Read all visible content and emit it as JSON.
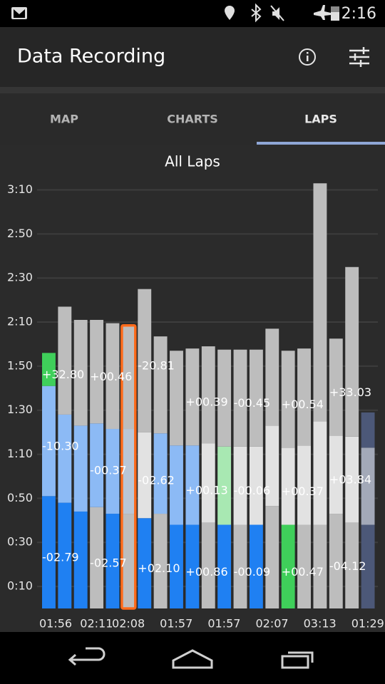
{
  "status_bar": {
    "time": "2:16"
  },
  "app_bar": {
    "title": "Data Recording"
  },
  "tabs": [
    "MAP",
    "CHARTS",
    "LAPS"
  ],
  "selected_tab": 2,
  "chart_data": {
    "type": "bar",
    "stacked": true,
    "title": "All Laps",
    "categories": [
      "01:56",
      null,
      null,
      "02:11",
      null,
      "02:08",
      null,
      null,
      "01:57",
      null,
      null,
      "01:57",
      null,
      null,
      "02:07",
      null,
      null,
      "03:13",
      null,
      null,
      "01:29"
    ],
    "highlight": 5,
    "highlight_color": "#ff6a1a",
    "ylim": [
      0,
      196
    ],
    "yticks": [
      {
        "value": 10,
        "label": "0:10"
      },
      {
        "value": 30,
        "label": "0:30"
      },
      {
        "value": 50,
        "label": "0:50"
      },
      {
        "value": 70,
        "label": "1:10"
      },
      {
        "value": 90,
        "label": "1:30"
      },
      {
        "value": 110,
        "label": "1:50"
      },
      {
        "value": 130,
        "label": "2:10"
      },
      {
        "value": 150,
        "label": "2:30"
      },
      {
        "value": 170,
        "label": "2:50"
      },
      {
        "value": 190,
        "label": "3:10"
      }
    ],
    "grid": true,
    "series": [
      {
        "values": [
          51,
          48,
          44,
          46,
          43,
          43,
          41,
          43,
          38,
          38,
          39,
          38,
          38,
          38,
          46.5,
          38,
          38,
          38,
          43,
          39,
          38
        ],
        "colors": [
          "#1f80f2",
          "#1f80f2",
          "#1f80f2",
          "#bdbdbd",
          "#1f80f2",
          "#bdbdbd",
          "#1f80f2",
          "#bdbdbd",
          "#1f80f2",
          "#1f80f2",
          "#bdbdbd",
          "#1f80f2",
          "#bdbdbd",
          "#1f80f2",
          "#bdbdbd",
          "#3fcf5a",
          "#bdbdbd",
          "#bdbdbd",
          "#bdbdbd",
          "#bdbdbd",
          "#4c5878"
        ],
        "delta_labels": [
          "-02.79",
          null,
          null,
          "-02.57",
          null,
          null,
          "+02.10",
          null,
          null,
          "+00.86",
          null,
          null,
          "-00.09",
          null,
          null,
          "+00.47",
          null,
          null,
          "-04.12",
          null,
          null
        ]
      },
      {
        "values": [
          50,
          40,
          39,
          38,
          38.5,
          38.5,
          39,
          36.5,
          36,
          36,
          36,
          35.5,
          35.5,
          35.5,
          36.5,
          35,
          36,
          47,
          35.5,
          39,
          35
        ],
        "colors": [
          "#8cbaf5",
          "#8cbaf5",
          "#8cbaf5",
          "#8cbaf5",
          "#8cbaf5",
          "#b9c6d6",
          "#e2e2e2",
          "#8cbaf5",
          "#8cbaf5",
          "#8cbaf5",
          "#e2e2e2",
          "#a8e8b2",
          "#e2e2e2",
          "#e2e2e2",
          "#e2e2e2",
          "#e2e2e2",
          "#e2e2e2",
          "#e2e2e2",
          "#e2e2e2",
          "#e2e2e2",
          "#a3a9b8"
        ],
        "delta_labels": [
          "-10.30",
          null,
          null,
          "-00.37",
          null,
          null,
          "-02.62",
          null,
          null,
          "+00.13",
          null,
          null,
          "-00.06",
          null,
          null,
          "+00.37",
          null,
          null,
          "+03.84",
          null,
          null
        ]
      },
      {
        "values": [
          15,
          49,
          48,
          47,
          48,
          47,
          65,
          44,
          43,
          44,
          44,
          44,
          44,
          44,
          44,
          44,
          44,
          108,
          44,
          77,
          16
        ],
        "colors": [
          "#3fcf5a",
          "#bdbdbd",
          "#bdbdbd",
          "#bdbdbd",
          "#bdbdbd",
          "#bdbdbd",
          "#bdbdbd",
          "#bdbdbd",
          "#bdbdbd",
          "#bdbdbd",
          "#bdbdbd",
          "#bdbdbd",
          "#bdbdbd",
          "#bdbdbd",
          "#bdbdbd",
          "#bdbdbd",
          "#bdbdbd",
          "#bdbdbd",
          "#bdbdbd",
          "#bdbdbd",
          "#4c5878"
        ],
        "delta_labels": [
          "+32.80",
          null,
          null,
          "+00.46",
          null,
          null,
          "-20.81",
          null,
          null,
          "+00.39",
          null,
          null,
          "-00.45",
          null,
          null,
          "+00.54",
          null,
          null,
          "+33.03",
          null,
          null
        ]
      }
    ]
  }
}
